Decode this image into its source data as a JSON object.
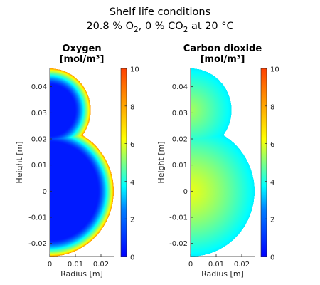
{
  "figure": {
    "title_line1": "Shelf life conditions",
    "title_line2": {
      "o2_value": "20.8 % O",
      "o2_sub": "2",
      "co2_value": ",  0 % CO",
      "co2_sub": "2",
      "temp": "  at  20 °C"
    }
  },
  "chart_data": [
    {
      "type": "heatmap",
      "title_line1": "Oxygen",
      "title_line2": "[mol/m³]",
      "xlabel": "Radius [m]",
      "ylabel": "Height [m]",
      "xlim": [
        0,
        0.025
      ],
      "ylim": [
        -0.025,
        0.047
      ],
      "x_ticks": [
        0,
        0.01,
        0.02
      ],
      "x_tick_labels": [
        "0",
        "0.01",
        "0.02"
      ],
      "y_ticks": [
        -0.02,
        -0.01,
        0,
        0.01,
        0.02,
        0.03,
        0.04
      ],
      "y_tick_labels": [
        "-0.02",
        "-0.01",
        "0",
        "0.01",
        "0.02",
        "0.03",
        "0.04"
      ],
      "colorbar": {
        "min": 0,
        "max": 10,
        "ticks": [
          0,
          2,
          4,
          6,
          8,
          10
        ],
        "colormap": "jet"
      },
      "shape": {
        "lower_sphere": {
          "center_y": 0,
          "radius": 0.025
        },
        "upper_sphere": {
          "center_y": 0.031,
          "radius": 0.016
        }
      },
      "field": {
        "core_value": 1.5,
        "surface_value": 7.3,
        "boundary_layer_fraction": 0.25,
        "exponent": 1.6
      }
    },
    {
      "type": "heatmap",
      "title_line1": "Carbon dioxide",
      "title_line2": "[mol/m³]",
      "xlabel": "Radius [m]",
      "ylabel": "Height [m]",
      "xlim": [
        0,
        0.025
      ],
      "ylim": [
        -0.025,
        0.047
      ],
      "x_ticks": [
        0,
        0.01,
        0.02
      ],
      "x_tick_labels": [
        "0",
        "0.01",
        "0.02"
      ],
      "y_ticks": [
        -0.02,
        -0.01,
        0,
        0.01,
        0.02,
        0.03,
        0.04
      ],
      "y_tick_labels": [
        "-0.02",
        "-0.01",
        "0",
        "0.01",
        "0.02",
        "0.03",
        "0.04"
      ],
      "colorbar": {
        "min": 0,
        "max": 10,
        "ticks": [
          0,
          2,
          4,
          6,
          8,
          10
        ],
        "colormap": "jet"
      },
      "shape": {
        "lower_sphere": {
          "center_y": 0,
          "radius": 0.025
        },
        "upper_sphere": {
          "center_y": 0.031,
          "radius": 0.016
        }
      },
      "field": {
        "core_value": 6.0,
        "surface_value": 3.6,
        "boundary_layer_fraction": 1.0,
        "exponent": 1.3
      }
    }
  ]
}
